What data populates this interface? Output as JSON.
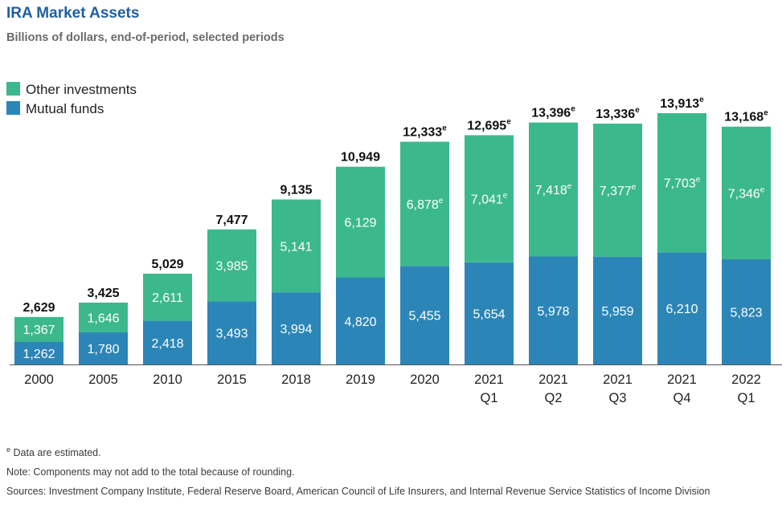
{
  "title": "IRA Market Assets",
  "subtitle": "Billions of dollars, end-of-period, selected periods",
  "colors": {
    "other": "#3cb98c",
    "mutual": "#2b86b7",
    "text": "#111111",
    "axis": "#555555"
  },
  "chart_data": {
    "type": "bar",
    "stacked": true,
    "categories": [
      [
        "2000"
      ],
      [
        "2005"
      ],
      [
        "2010"
      ],
      [
        "2015"
      ],
      [
        "2018"
      ],
      [
        "2019"
      ],
      [
        "2020"
      ],
      [
        "2021",
        "Q1"
      ],
      [
        "2021",
        "Q2"
      ],
      [
        "2021",
        "Q3"
      ],
      [
        "2021",
        "Q4"
      ],
      [
        "2022",
        "Q1"
      ]
    ],
    "series": [
      {
        "name": "Mutual funds",
        "values": [
          1262,
          1780,
          2418,
          3493,
          3994,
          4820,
          5455,
          5654,
          5978,
          5959,
          6210,
          5823
        ],
        "labels": [
          "1,262",
          "1,780",
          "2,418",
          "3,493",
          "3,994",
          "4,820",
          "5,455",
          "5,654",
          "5,978",
          "5,959",
          "6,210",
          "5,823"
        ],
        "estimated": [
          false,
          false,
          false,
          false,
          false,
          false,
          false,
          false,
          false,
          false,
          false,
          false
        ]
      },
      {
        "name": "Other investments",
        "values": [
          1367,
          1646,
          2611,
          3985,
          5141,
          6129,
          6878,
          7041,
          7418,
          7377,
          7703,
          7346
        ],
        "labels": [
          "1,367",
          "1,646",
          "2,611",
          "3,985",
          "5,141",
          "6,129",
          "6,878",
          "7,041",
          "7,418",
          "7,377",
          "7,703",
          "7,346"
        ],
        "estimated": [
          false,
          false,
          false,
          false,
          false,
          false,
          true,
          true,
          true,
          true,
          true,
          true
        ]
      }
    ],
    "totals": [
      2629,
      3425,
      5029,
      7477,
      9135,
      10949,
      12333,
      12695,
      13396,
      13336,
      13913,
      13168
    ],
    "total_labels": [
      "2,629",
      "3,425",
      "5,029",
      "7,477",
      "9,135",
      "10,949",
      "12,333",
      "12,695",
      "13,396",
      "13,336",
      "13,913",
      "13,168"
    ],
    "total_estimated": [
      false,
      false,
      false,
      false,
      false,
      false,
      true,
      true,
      true,
      true,
      true,
      true
    ],
    "estimate_marker": "e",
    "ylim": [
      0,
      13913
    ],
    "grid": false,
    "legend_position": "top-left"
  },
  "notes": {
    "estimate_marker": "e",
    "estimate_text": " Data are estimated.",
    "note": "Note: Components may not add to the total because of rounding.",
    "sources": "Sources: Investment Company Institute, Federal Reserve Board, American Council of Life Insurers, and Internal Revenue Service Statistics of Income Division"
  }
}
